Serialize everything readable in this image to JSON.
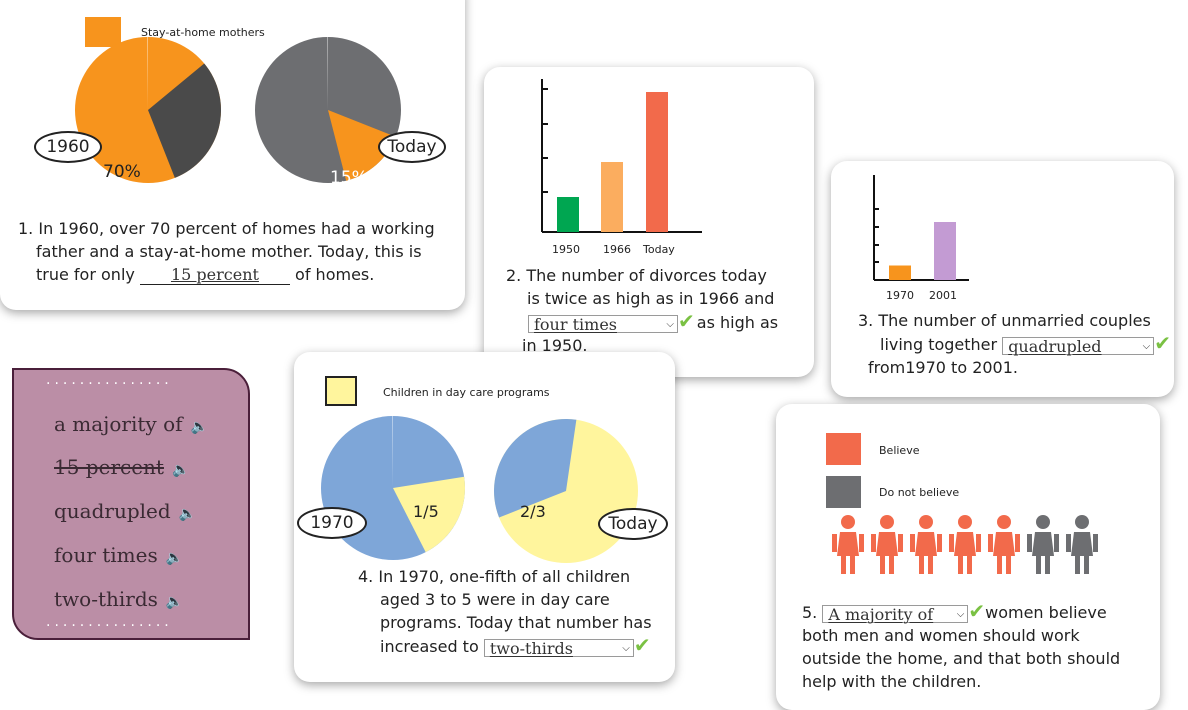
{
  "card1": {
    "legend": "Stay-at-home mothers",
    "label_left": "1960",
    "label_right": "Today",
    "pct_left": "70%",
    "pct_right": "15%",
    "q_line1": "1.  In 1960, over 70 percent of homes had a  working",
    "q_line2": "father and a stay-at-home mother.  Today, this is",
    "q_line3a": "true for only",
    "q_blank": "15 percent",
    "q_line3b": "of homes."
  },
  "card2": {
    "xlabels": [
      "1950",
      "1966",
      "Today"
    ],
    "q_line1": "2. The number of divorces today",
    "q_line2": "is twice as high as in 1966 and",
    "q_select": "four times",
    "q_after": "as high as",
    "q_line4": "in 1950."
  },
  "card3": {
    "xlabels": [
      "1970",
      "2001"
    ],
    "q_line1": "3.  The number of unmarried couples",
    "q_line2": "living together",
    "q_select": "quadrupled",
    "q_line3": "from1970 to 2001."
  },
  "card4": {
    "legend": "Children in day care programs",
    "label_left": "1970",
    "label_right": "Today",
    "frac_left": "1/5",
    "frac_right": "2/3",
    "q_line1": "4. In 1970, one-fifth of all children",
    "q_line2": "aged 3 to 5 were in day care",
    "q_line3": "programs. Today that number has",
    "q_line4": "increased to",
    "q_select": "two-thirds"
  },
  "card5": {
    "legend_believe": "Believe",
    "legend_not": "Do not believe",
    "q_num": "5.",
    "q_select": "A majority of",
    "q_line1": "women believe",
    "q_line2": "both men and women should work",
    "q_line3": "outside the home, and that both should",
    "q_line4": "help with the children."
  },
  "wordbank": {
    "dots": "...............",
    "words": [
      "a majority of",
      "15 percent",
      "quadrupled",
      "four times",
      "two-thirds"
    ]
  },
  "chart_data": [
    {
      "type": "pie",
      "title": "Stay-at-home mothers",
      "categories": [
        "1960",
        "Today"
      ],
      "values": [
        70,
        15
      ]
    },
    {
      "type": "bar",
      "categories": [
        "1950",
        "1966",
        "Today"
      ],
      "values": [
        1,
        2,
        4
      ]
    },
    {
      "type": "bar",
      "categories": [
        "1970",
        "2001"
      ],
      "values": [
        1,
        4
      ]
    },
    {
      "type": "pie",
      "title": "Children in day care programs",
      "categories": [
        "1970",
        "Today"
      ],
      "values": [
        20,
        66.7
      ]
    },
    {
      "type": "bar",
      "series": [
        {
          "name": "Believe",
          "values": [
            5
          ]
        },
        {
          "name": "Do not believe",
          "values": [
            2
          ]
        }
      ]
    }
  ],
  "colors": {
    "orange": "#f7941d",
    "gray": "#6d6e71",
    "dark": "#4a4a4a",
    "green": "#00a651",
    "lightorange": "#fbad5f",
    "red": "#f26a4b",
    "purple": "#c39bd3",
    "blue": "#7ea6d8",
    "yellow": "#fff59d",
    "check": "#7ac143",
    "wordbank": "#bb8ea6"
  },
  "icons": [
    "speaker-icon",
    "checkmark-icon",
    "chevron-down-icon",
    "person-icon"
  ]
}
